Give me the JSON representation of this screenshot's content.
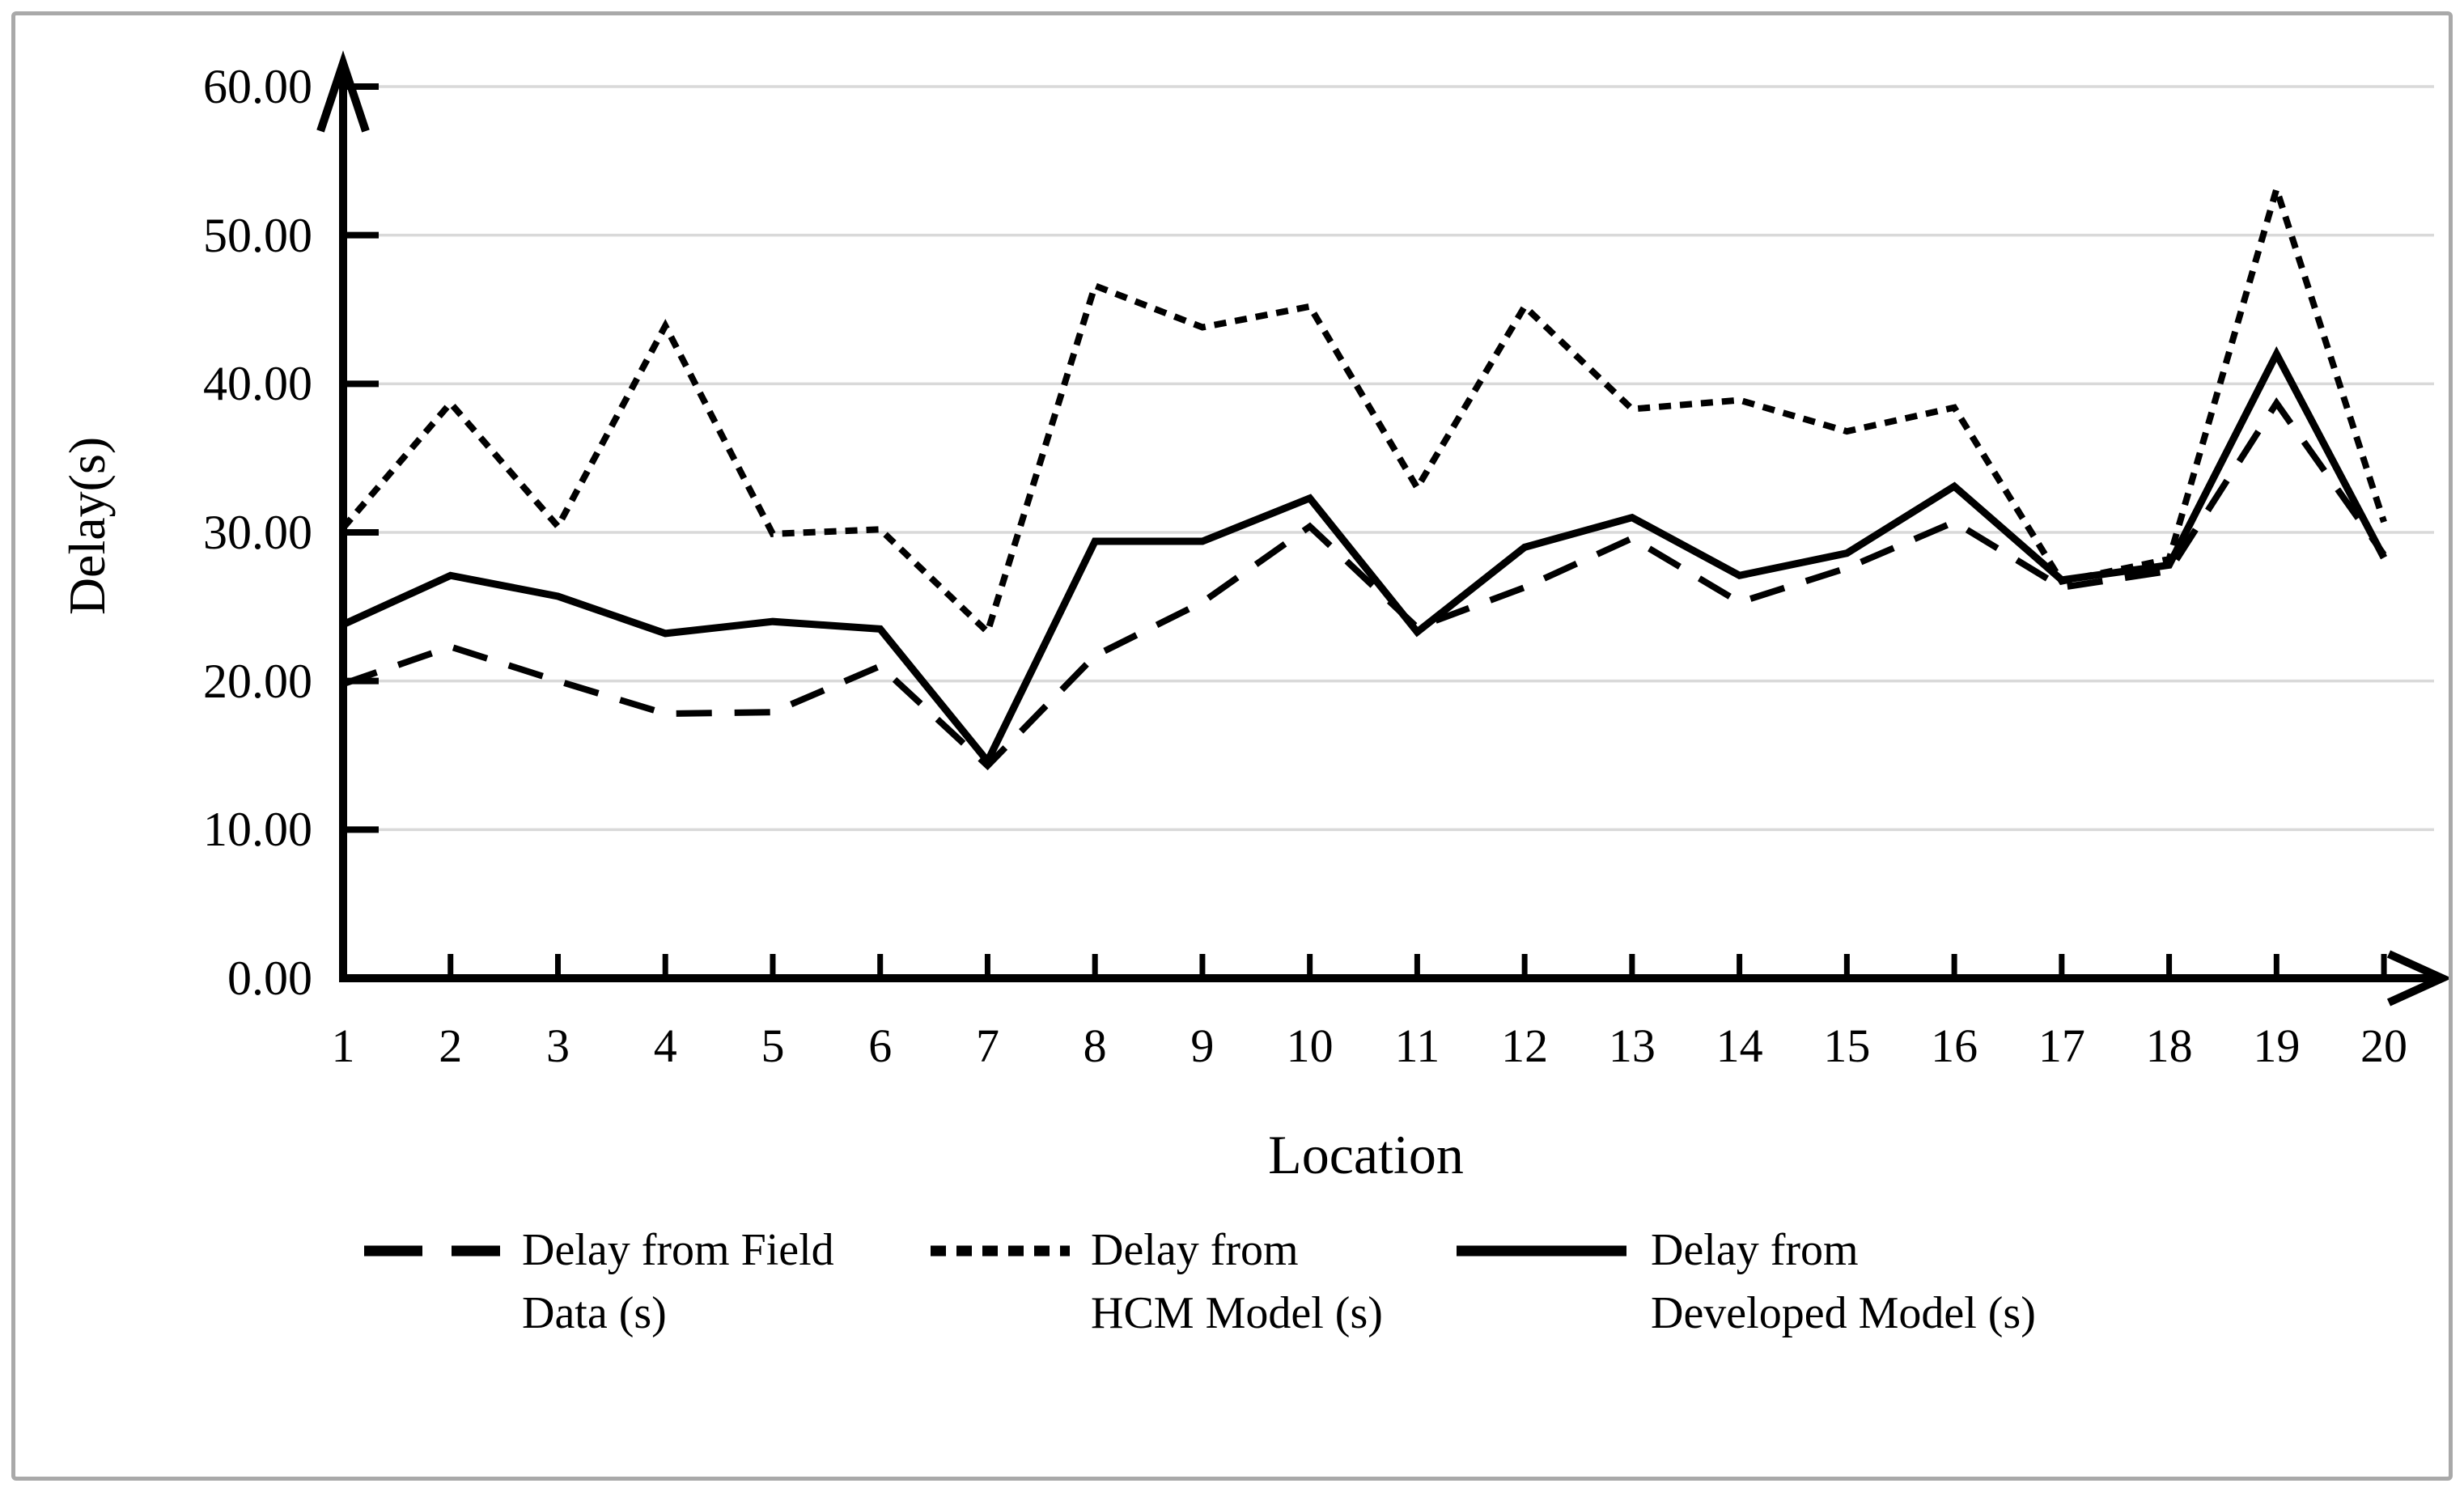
{
  "figure": {
    "background": "#ffffff",
    "frame_border_color": "#a9a9a9",
    "gridline_color": "#d9d9d9",
    "axis_color": "#000000"
  },
  "chart_data": {
    "type": "line",
    "title": "",
    "xlabel": "Location",
    "ylabel": "Delay(s)",
    "x": [
      1,
      2,
      3,
      4,
      5,
      6,
      7,
      8,
      9,
      10,
      11,
      12,
      13,
      14,
      15,
      16,
      17,
      18,
      19,
      20
    ],
    "x_tick_labels": [
      "1",
      "2",
      "3",
      "4",
      "5",
      "6",
      "7",
      "8",
      "9",
      "10",
      "11",
      "12",
      "13",
      "14",
      "15",
      "16",
      "17",
      "18",
      "19",
      "20"
    ],
    "ylim": [
      0,
      60
    ],
    "y_tick_step": 10,
    "y_tick_labels": [
      "0.00",
      "10.00",
      "20.00",
      "30.00",
      "40.00",
      "50.00",
      "60.00"
    ],
    "grid": "horizontal",
    "legend_position": "bottom",
    "series": [
      {
        "name": "Delay from Field Data (s)",
        "legend_label_lines": [
          "Delay from Field",
          "Data (s)"
        ],
        "style": "long-dash",
        "color": "#000000",
        "values": [
          19.8,
          22.3,
          20.0,
          17.8,
          17.9,
          21.0,
          14.3,
          21.7,
          25.3,
          30.4,
          23.6,
          26.3,
          29.6,
          25.3,
          27.6,
          30.7,
          26.3,
          27.4,
          38.7,
          28.5
        ]
      },
      {
        "name": "Delay from HCM Model (s)",
        "legend_label_lines": [
          "Delay from",
          "HCM Model (s)"
        ],
        "style": "short-dash",
        "color": "#000000",
        "values": [
          30.3,
          38.7,
          30.4,
          43.9,
          29.9,
          30.2,
          23.3,
          46.6,
          43.8,
          45.2,
          33.0,
          45.2,
          38.3,
          38.9,
          36.8,
          38.4,
          26.7,
          28.2,
          53.1,
          30.7
        ]
      },
      {
        "name": "Delay from Developed Model (s)",
        "legend_label_lines": [
          "Delay from",
          "Developed Model (s)"
        ],
        "style": "solid",
        "color": "#000000",
        "values": [
          23.8,
          27.1,
          25.7,
          23.2,
          24.0,
          23.5,
          14.6,
          29.4,
          29.4,
          32.3,
          23.3,
          29.0,
          31.0,
          27.1,
          28.6,
          33.1,
          26.8,
          27.8,
          42.0,
          28.3
        ]
      }
    ]
  }
}
